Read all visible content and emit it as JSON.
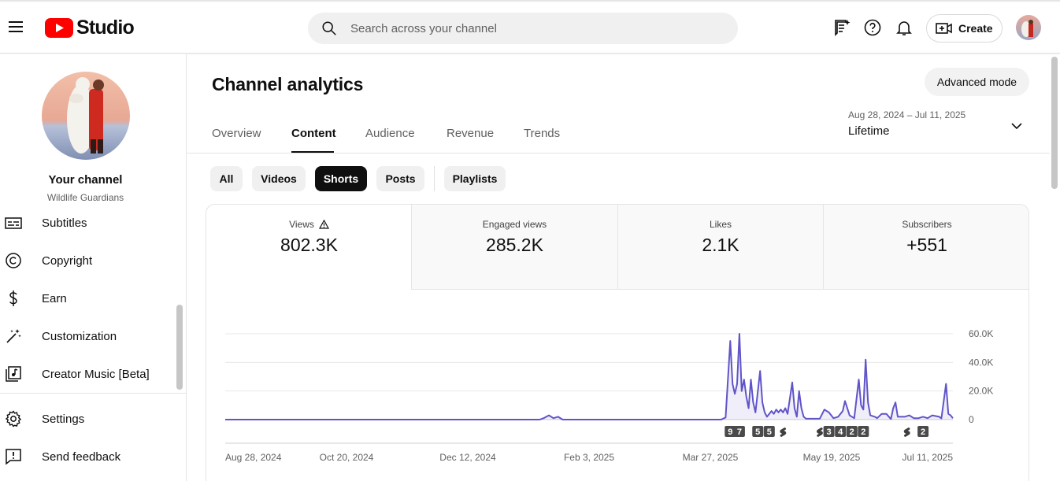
{
  "header": {
    "logo_text": "Studio",
    "search_placeholder": "Search across your channel",
    "create_label": "Create"
  },
  "sidebar": {
    "channel_title": "Your channel",
    "channel_name": "Wildlife Guardians",
    "items": [
      {
        "label": "Subtitles",
        "icon": "subtitles-icon"
      },
      {
        "label": "Copyright",
        "icon": "copyright-icon"
      },
      {
        "label": "Earn",
        "icon": "dollar-icon"
      },
      {
        "label": "Customization",
        "icon": "magic-wand-icon"
      },
      {
        "label": "Creator Music [Beta]",
        "icon": "music-library-icon"
      },
      {
        "label": "Settings",
        "icon": "gear-icon"
      },
      {
        "label": "Send feedback",
        "icon": "feedback-icon"
      }
    ]
  },
  "main": {
    "title": "Channel analytics",
    "advanced_mode": "Advanced mode",
    "tabs": [
      "Overview",
      "Content",
      "Audience",
      "Revenue",
      "Trends"
    ],
    "active_tab": "Content",
    "date_range": {
      "dates": "Aug 28, 2024 – Jul 11, 2025",
      "period": "Lifetime"
    },
    "chips": [
      "All",
      "Videos",
      "Shorts",
      "Posts",
      "Playlists"
    ],
    "active_chip": "Shorts",
    "metrics": [
      {
        "label": "Views",
        "value": "802.3K",
        "warning": true
      },
      {
        "label": "Engaged views",
        "value": "285.2K"
      },
      {
        "label": "Likes",
        "value": "2.1K"
      },
      {
        "label": "Subscribers",
        "value": "+551"
      }
    ]
  },
  "chart_data": {
    "type": "area",
    "series": [
      {
        "name": "Views",
        "color": "#6054c9"
      }
    ],
    "x_tick_labels": [
      "Aug 28, 2024",
      "Oct 20, 2024",
      "Dec 12, 2024",
      "Feb 3, 2025",
      "Mar 27, 2025",
      "May 19, 2025",
      "Jul 11, 2025"
    ],
    "y_tick_labels": [
      "0",
      "20.0K",
      "40.0K",
      "60.0K"
    ],
    "ylim": [
      0,
      60000
    ],
    "x_start": "2024-08-28",
    "x_end": "2025-07-11",
    "points": [
      [
        "2024-08-28",
        0
      ],
      [
        "2025-01-12",
        0
      ],
      [
        "2025-01-14",
        1200
      ],
      [
        "2025-01-16",
        3000
      ],
      [
        "2025-01-18",
        1000
      ],
      [
        "2025-01-20",
        2000
      ],
      [
        "2025-01-22",
        0
      ],
      [
        "2025-04-01",
        0
      ],
      [
        "2025-04-03",
        1500
      ],
      [
        "2025-04-05",
        55000
      ],
      [
        "2025-04-06",
        25000
      ],
      [
        "2025-04-07",
        18000
      ],
      [
        "2025-04-08",
        25000
      ],
      [
        "2025-04-09",
        60000
      ],
      [
        "2025-04-10",
        20000
      ],
      [
        "2025-04-11",
        28000
      ],
      [
        "2025-04-12",
        16000
      ],
      [
        "2025-04-13",
        8000
      ],
      [
        "2025-04-14",
        28000
      ],
      [
        "2025-04-15",
        12000
      ],
      [
        "2025-04-16",
        5000
      ],
      [
        "2025-04-18",
        34000
      ],
      [
        "2025-04-19",
        12000
      ],
      [
        "2025-04-20",
        5000
      ],
      [
        "2025-04-21",
        2000
      ],
      [
        "2025-04-23",
        6000
      ],
      [
        "2025-04-24",
        4000
      ],
      [
        "2025-04-25",
        7000
      ],
      [
        "2025-04-26",
        5000
      ],
      [
        "2025-04-27",
        7000
      ],
      [
        "2025-04-28",
        5000
      ],
      [
        "2025-04-29",
        8000
      ],
      [
        "2025-04-30",
        4000
      ],
      [
        "2025-05-02",
        26000
      ],
      [
        "2025-05-03",
        8000
      ],
      [
        "2025-05-04",
        2000
      ],
      [
        "2025-05-05",
        20000
      ],
      [
        "2025-05-06",
        8000
      ],
      [
        "2025-05-07",
        2000
      ],
      [
        "2025-05-08",
        600
      ],
      [
        "2025-05-14",
        600
      ],
      [
        "2025-05-16",
        7000
      ],
      [
        "2025-05-18",
        5000
      ],
      [
        "2025-05-20",
        1000
      ],
      [
        "2025-05-22",
        2000
      ],
      [
        "2025-05-24",
        6000
      ],
      [
        "2025-05-25",
        13000
      ],
      [
        "2025-05-27",
        3000
      ],
      [
        "2025-05-29",
        1000
      ],
      [
        "2025-05-31",
        28000
      ],
      [
        "2025-06-01",
        10000
      ],
      [
        "2025-06-02",
        7000
      ],
      [
        "2025-06-03",
        42000
      ],
      [
        "2025-06-04",
        12000
      ],
      [
        "2025-06-05",
        3000
      ],
      [
        "2025-06-07",
        2000
      ],
      [
        "2025-06-08",
        1000
      ],
      [
        "2025-06-10",
        4000
      ],
      [
        "2025-06-12",
        4000
      ],
      [
        "2025-06-14",
        400
      ],
      [
        "2025-06-15",
        8000
      ],
      [
        "2025-06-16",
        12000
      ],
      [
        "2025-06-17",
        2000
      ],
      [
        "2025-06-20",
        2000
      ],
      [
        "2025-06-22",
        3000
      ],
      [
        "2025-06-24",
        1000
      ],
      [
        "2025-06-26",
        1000
      ],
      [
        "2025-06-28",
        2000
      ],
      [
        "2025-06-30",
        1000
      ],
      [
        "2025-07-02",
        3000
      ],
      [
        "2025-07-05",
        2000
      ],
      [
        "2025-07-06",
        800
      ],
      [
        "2025-07-08",
        25000
      ],
      [
        "2025-07-09",
        4000
      ],
      [
        "2025-07-10",
        3000
      ],
      [
        "2025-07-11",
        1000
      ]
    ],
    "markers": [
      {
        "date": "2025-04-05",
        "label": "9"
      },
      {
        "date": "2025-04-09",
        "label": "7"
      },
      {
        "date": "2025-04-17",
        "label": "5"
      },
      {
        "date": "2025-04-22",
        "label": "5"
      },
      {
        "date": "2025-04-28",
        "label": "",
        "icon": "shorts-icon"
      },
      {
        "date": "2025-05-14",
        "label": "",
        "icon": "shorts-icon"
      },
      {
        "date": "2025-05-18",
        "label": "3"
      },
      {
        "date": "2025-05-23",
        "label": "4"
      },
      {
        "date": "2025-05-28",
        "label": "2"
      },
      {
        "date": "2025-06-02",
        "label": "2"
      },
      {
        "date": "2025-06-21",
        "label": "",
        "icon": "shorts-icon"
      },
      {
        "date": "2025-06-28",
        "label": "2"
      }
    ]
  }
}
